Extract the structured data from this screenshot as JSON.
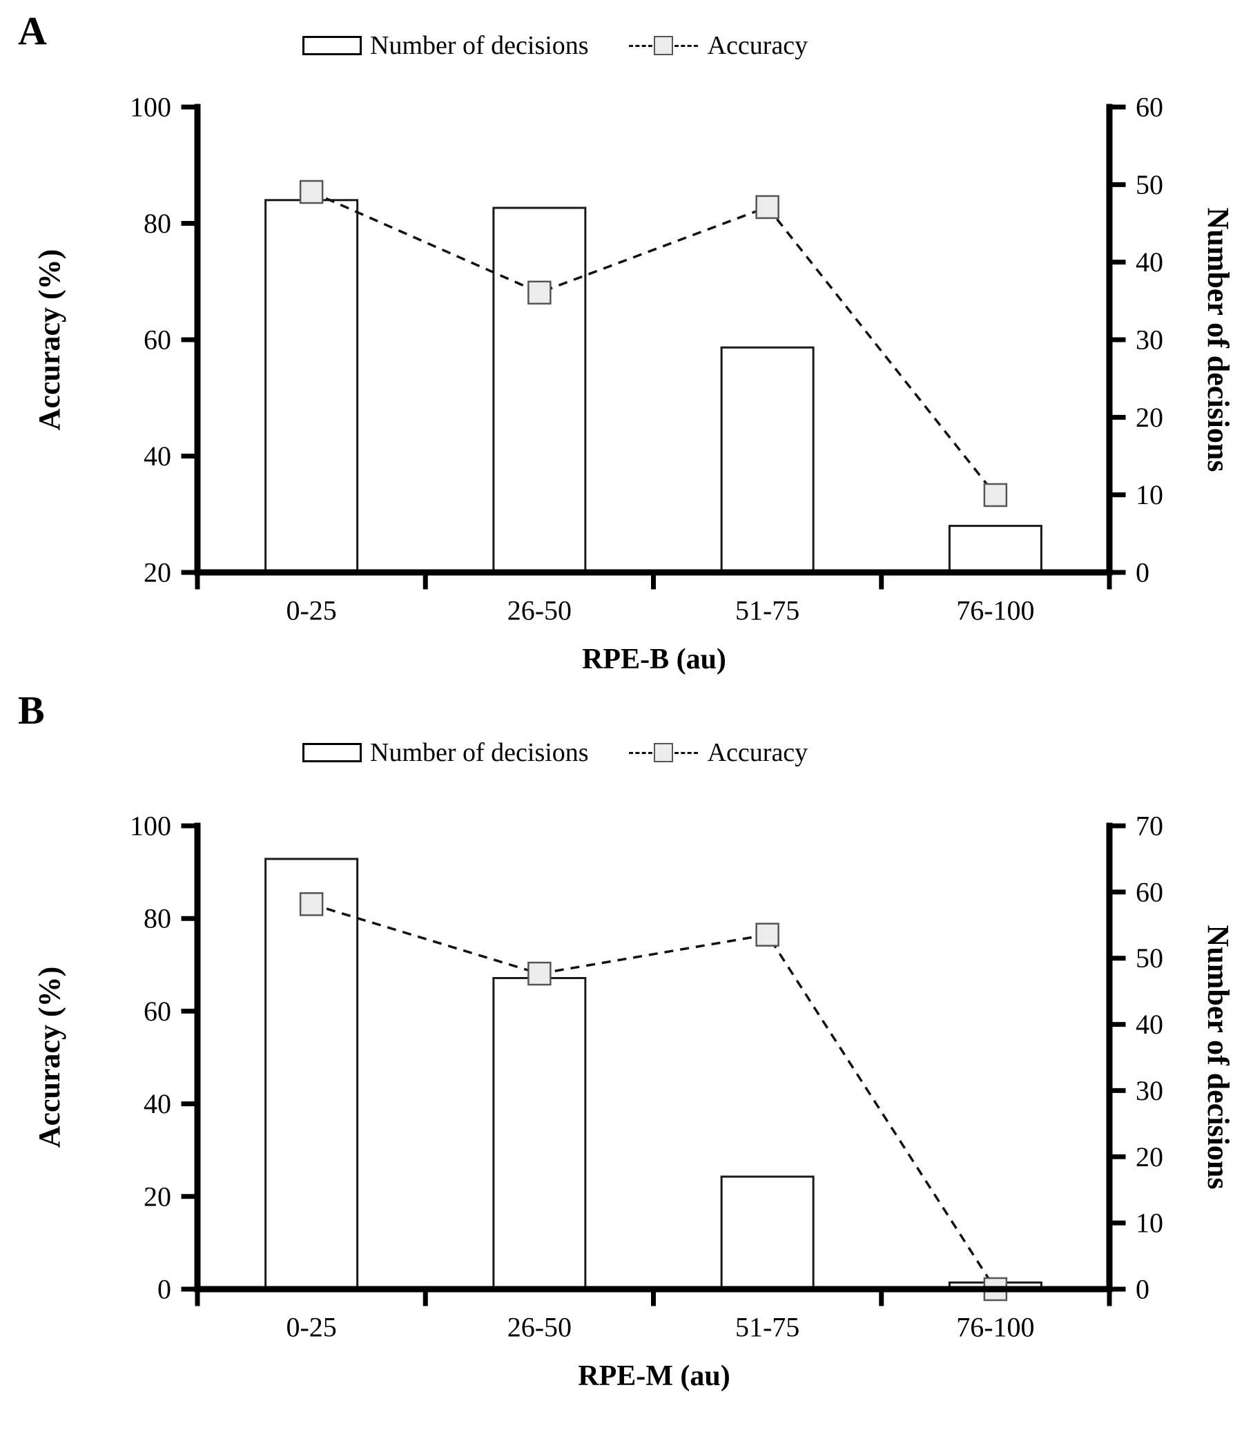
{
  "page": {
    "background": "#ffffff"
  },
  "style": {
    "bar_fill": "#ffffff",
    "bar_stroke": "#1a1a1a",
    "marker_fill": "#ececec",
    "marker_stroke": "#555555",
    "line_color": "#111111",
    "axis_color": "#000000"
  },
  "chart_data": [
    {
      "type": "bar+line",
      "letter": "A",
      "legend": {
        "bar_label": "Number of decisions",
        "line_label": "Accuracy"
      },
      "x_axis": {
        "title": "RPE-B (au)",
        "categories": [
          "0-25",
          "26-50",
          "51-75",
          "76-100"
        ]
      },
      "left_axis": {
        "title": "Accuracy (%)",
        "min": 20,
        "max": 100,
        "step": 20,
        "tick_labels": [
          "20",
          "40",
          "60",
          "80",
          "100"
        ]
      },
      "right_axis": {
        "title": "Number of decisions",
        "min": 0,
        "max": 60,
        "step": 10,
        "tick_labels": [
          "0",
          "10",
          "20",
          "30",
          "40",
          "50",
          "60"
        ]
      },
      "series": [
        {
          "name": "Number of decisions",
          "kind": "bar",
          "axis": "right",
          "values": [
            48,
            47,
            29,
            6
          ]
        },
        {
          "name": "Accuracy",
          "kind": "line",
          "axis": "left",
          "values": [
            85.4,
            68.1,
            82.8,
            33.3
          ]
        }
      ],
      "grid": false,
      "legend_position": "top"
    },
    {
      "type": "bar+line",
      "letter": "B",
      "legend": {
        "bar_label": "Number of decisions",
        "line_label": "Accuracy"
      },
      "x_axis": {
        "title": "RPE-M (au)",
        "categories": [
          "0-25",
          "26-50",
          "51-75",
          "76-100"
        ]
      },
      "left_axis": {
        "title": "Accuracy (%)",
        "min": 0,
        "max": 100,
        "step": 20,
        "tick_labels": [
          "0",
          "20",
          "40",
          "60",
          "80",
          "100"
        ]
      },
      "right_axis": {
        "title": "Number of decisions",
        "min": 0,
        "max": 70,
        "step": 10,
        "tick_labels": [
          "0",
          "10",
          "20",
          "30",
          "40",
          "50",
          "60",
          "70"
        ]
      },
      "series": [
        {
          "name": "Number of decisions",
          "kind": "bar",
          "axis": "right",
          "values": [
            65,
            47,
            17,
            1
          ]
        },
        {
          "name": "Accuracy",
          "kind": "line",
          "axis": "left",
          "values": [
            83.1,
            68.1,
            76.5,
            0
          ]
        }
      ],
      "grid": false,
      "legend_position": "top"
    }
  ]
}
